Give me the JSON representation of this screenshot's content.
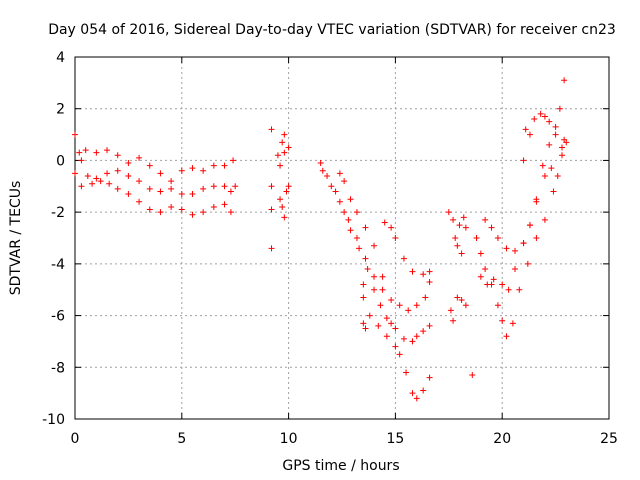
{
  "chart_data": {
    "type": "scatter",
    "title": "Day 054 of 2016, Sidereal Day-to-day VTEC variation (SDTVAR) for receiver cn23",
    "xlabel": "GPS time / hours",
    "ylabel": "SDTVAR / TECUs",
    "xlim": [
      0,
      25
    ],
    "ylim": [
      -10,
      4
    ],
    "xticks": [
      0,
      5,
      10,
      15,
      20,
      25
    ],
    "yticks": [
      -10,
      -8,
      -6,
      -4,
      -2,
      0,
      2,
      4
    ],
    "grid": true,
    "legend": "none",
    "marker": "+",
    "color": "#ff0000",
    "series": [
      {
        "points": [
          [
            0.0,
            1.0
          ],
          [
            0.0,
            -0.5
          ],
          [
            0.3,
            0.0
          ],
          [
            0.6,
            -0.6
          ],
          [
            1.0,
            -0.7
          ],
          [
            1.5,
            -0.5
          ],
          [
            2.0,
            -0.4
          ],
          [
            2.5,
            -0.6
          ],
          [
            3.0,
            -0.8
          ],
          [
            3.5,
            -1.1
          ],
          [
            4.0,
            -1.2
          ],
          [
            4.5,
            -1.1
          ],
          [
            5.0,
            -1.3
          ],
          [
            5.5,
            -1.3
          ],
          [
            6.0,
            -1.1
          ],
          [
            6.5,
            -1.0
          ],
          [
            7.0,
            -1.0
          ],
          [
            7.3,
            -1.2
          ],
          [
            7.5,
            -1.0
          ]
        ]
      },
      {
        "points": [
          [
            0.2,
            0.3
          ],
          [
            0.5,
            0.4
          ],
          [
            1.0,
            0.3
          ],
          [
            1.5,
            0.4
          ],
          [
            2.0,
            0.2
          ],
          [
            2.5,
            -0.1
          ],
          [
            3.0,
            0.1
          ],
          [
            3.5,
            -0.2
          ],
          [
            4.0,
            -0.5
          ],
          [
            4.5,
            -0.8
          ],
          [
            5.0,
            -0.4
          ],
          [
            5.5,
            -0.3
          ],
          [
            6.0,
            -0.4
          ],
          [
            6.5,
            -0.2
          ],
          [
            7.0,
            -0.2
          ],
          [
            7.4,
            0.0
          ]
        ]
      },
      {
        "points": [
          [
            0.3,
            -1.0
          ],
          [
            0.8,
            -0.9
          ],
          [
            1.2,
            -0.8
          ],
          [
            1.6,
            -0.9
          ],
          [
            2.0,
            -1.1
          ],
          [
            2.5,
            -1.3
          ],
          [
            3.0,
            -1.6
          ],
          [
            3.5,
            -1.9
          ],
          [
            4.0,
            -2.0
          ],
          [
            4.5,
            -1.8
          ],
          [
            5.0,
            -1.9
          ],
          [
            5.5,
            -2.1
          ],
          [
            6.0,
            -2.0
          ],
          [
            6.5,
            -1.8
          ],
          [
            7.0,
            -1.7
          ],
          [
            7.3,
            -2.0
          ]
        ]
      },
      {
        "points": [
          [
            9.2,
            -1.0
          ],
          [
            9.2,
            -1.9
          ],
          [
            9.2,
            -3.4
          ],
          [
            9.2,
            1.2
          ],
          [
            9.5,
            0.2
          ],
          [
            9.6,
            -0.2
          ],
          [
            9.7,
            0.7
          ],
          [
            9.8,
            1.0
          ],
          [
            9.8,
            0.3
          ],
          [
            9.6,
            -1.5
          ],
          [
            9.7,
            -1.8
          ],
          [
            9.8,
            -2.2
          ],
          [
            9.9,
            -1.2
          ],
          [
            10.0,
            -1.0
          ],
          [
            10.0,
            0.5
          ]
        ]
      },
      {
        "points": [
          [
            11.5,
            -0.1
          ],
          [
            11.8,
            -0.6
          ],
          [
            12.2,
            -1.2
          ],
          [
            12.6,
            -2.0
          ],
          [
            12.9,
            -2.7
          ],
          [
            13.3,
            -3.4
          ],
          [
            13.7,
            -4.2
          ],
          [
            14.0,
            -5.0
          ],
          [
            14.3,
            -5.6
          ],
          [
            14.6,
            -6.1
          ],
          [
            15.0,
            -6.5
          ],
          [
            15.4,
            -6.9
          ],
          [
            15.8,
            -7.0
          ],
          [
            16.0,
            -6.8
          ],
          [
            16.3,
            -6.6
          ],
          [
            16.6,
            -6.4
          ]
        ]
      },
      {
        "points": [
          [
            11.6,
            -0.4
          ],
          [
            12.0,
            -1.0
          ],
          [
            12.4,
            -1.6
          ],
          [
            12.8,
            -2.3
          ],
          [
            13.2,
            -3.0
          ],
          [
            13.6,
            -3.8
          ],
          [
            14.0,
            -4.5
          ],
          [
            14.4,
            -5.0
          ],
          [
            14.8,
            -5.4
          ],
          [
            15.2,
            -5.6
          ],
          [
            15.6,
            -5.8
          ],
          [
            16.0,
            -5.6
          ],
          [
            16.4,
            -5.3
          ],
          [
            16.6,
            -4.7
          ]
        ]
      },
      {
        "points": [
          [
            12.4,
            -0.5
          ],
          [
            12.6,
            -0.8
          ],
          [
            12.9,
            -1.5
          ],
          [
            13.2,
            -2.0
          ],
          [
            13.6,
            -2.6
          ],
          [
            14.0,
            -3.3
          ],
          [
            14.4,
            -4.5
          ],
          [
            14.8,
            -6.3
          ],
          [
            15.2,
            -7.5
          ],
          [
            15.5,
            -8.2
          ],
          [
            15.8,
            -9.0
          ],
          [
            16.0,
            -9.2
          ],
          [
            16.3,
            -8.9
          ],
          [
            16.6,
            -8.4
          ]
        ]
      },
      {
        "points": [
          [
            13.5,
            -4.8
          ],
          [
            13.5,
            -5.3
          ],
          [
            13.5,
            -6.3
          ],
          [
            13.6,
            -6.5
          ],
          [
            13.8,
            -6.0
          ],
          [
            14.2,
            -6.4
          ],
          [
            14.6,
            -6.8
          ],
          [
            15.0,
            -7.2
          ],
          [
            14.5,
            -2.4
          ],
          [
            14.8,
            -2.6
          ],
          [
            15.0,
            -3.0
          ],
          [
            15.4,
            -3.8
          ],
          [
            15.8,
            -4.3
          ],
          [
            16.3,
            -4.4
          ],
          [
            16.6,
            -4.3
          ]
        ]
      },
      {
        "points": [
          [
            17.5,
            -2.0
          ],
          [
            17.7,
            -2.3
          ],
          [
            18.0,
            -2.5
          ],
          [
            18.2,
            -2.2
          ],
          [
            18.3,
            -2.6
          ],
          [
            17.8,
            -3.0
          ],
          [
            17.9,
            -3.3
          ],
          [
            18.1,
            -3.6
          ],
          [
            17.6,
            -5.8
          ],
          [
            17.7,
            -6.2
          ],
          [
            17.9,
            -5.3
          ],
          [
            18.1,
            -5.4
          ],
          [
            18.3,
            -5.6
          ],
          [
            18.6,
            -8.3
          ]
        ]
      },
      {
        "points": [
          [
            18.8,
            -3.0
          ],
          [
            19.0,
            -3.6
          ],
          [
            19.2,
            -4.2
          ],
          [
            19.5,
            -4.8
          ],
          [
            19.8,
            -5.6
          ],
          [
            20.0,
            -6.2
          ],
          [
            20.2,
            -6.8
          ],
          [
            20.5,
            -6.3
          ],
          [
            20.8,
            -5.0
          ],
          [
            21.2,
            -4.0
          ],
          [
            21.6,
            -3.0
          ],
          [
            22.0,
            -2.3
          ],
          [
            22.4,
            -1.2
          ],
          [
            22.8,
            0.5
          ]
        ]
      },
      {
        "points": [
          [
            19.0,
            -4.5
          ],
          [
            19.3,
            -4.8
          ],
          [
            19.6,
            -4.6
          ],
          [
            20.0,
            -4.8
          ],
          [
            20.3,
            -5.0
          ],
          [
            20.6,
            -4.2
          ],
          [
            21.0,
            -3.2
          ],
          [
            21.3,
            -2.5
          ],
          [
            21.6,
            -1.6
          ],
          [
            22.0,
            -0.6
          ],
          [
            22.3,
            -0.3
          ],
          [
            22.6,
            -0.6
          ],
          [
            22.9,
            0.8
          ]
        ]
      },
      {
        "points": [
          [
            19.2,
            -2.3
          ],
          [
            19.5,
            -2.6
          ],
          [
            19.8,
            -3.0
          ],
          [
            20.2,
            -3.4
          ],
          [
            20.6,
            -3.5
          ],
          [
            21.0,
            -3.2
          ],
          [
            21.3,
            -2.5
          ],
          [
            21.6,
            -1.5
          ],
          [
            21.9,
            -0.2
          ],
          [
            22.2,
            0.6
          ],
          [
            22.5,
            1.0
          ],
          [
            22.7,
            2.0
          ],
          [
            22.9,
            3.1
          ]
        ]
      },
      {
        "points": [
          [
            21.0,
            0.0
          ],
          [
            21.1,
            1.2
          ],
          [
            21.3,
            1.0
          ],
          [
            21.5,
            1.6
          ],
          [
            21.8,
            1.8
          ],
          [
            22.0,
            1.7
          ],
          [
            22.2,
            1.5
          ],
          [
            22.5,
            1.3
          ],
          [
            22.8,
            0.2
          ],
          [
            23.0,
            0.7
          ]
        ]
      }
    ]
  }
}
